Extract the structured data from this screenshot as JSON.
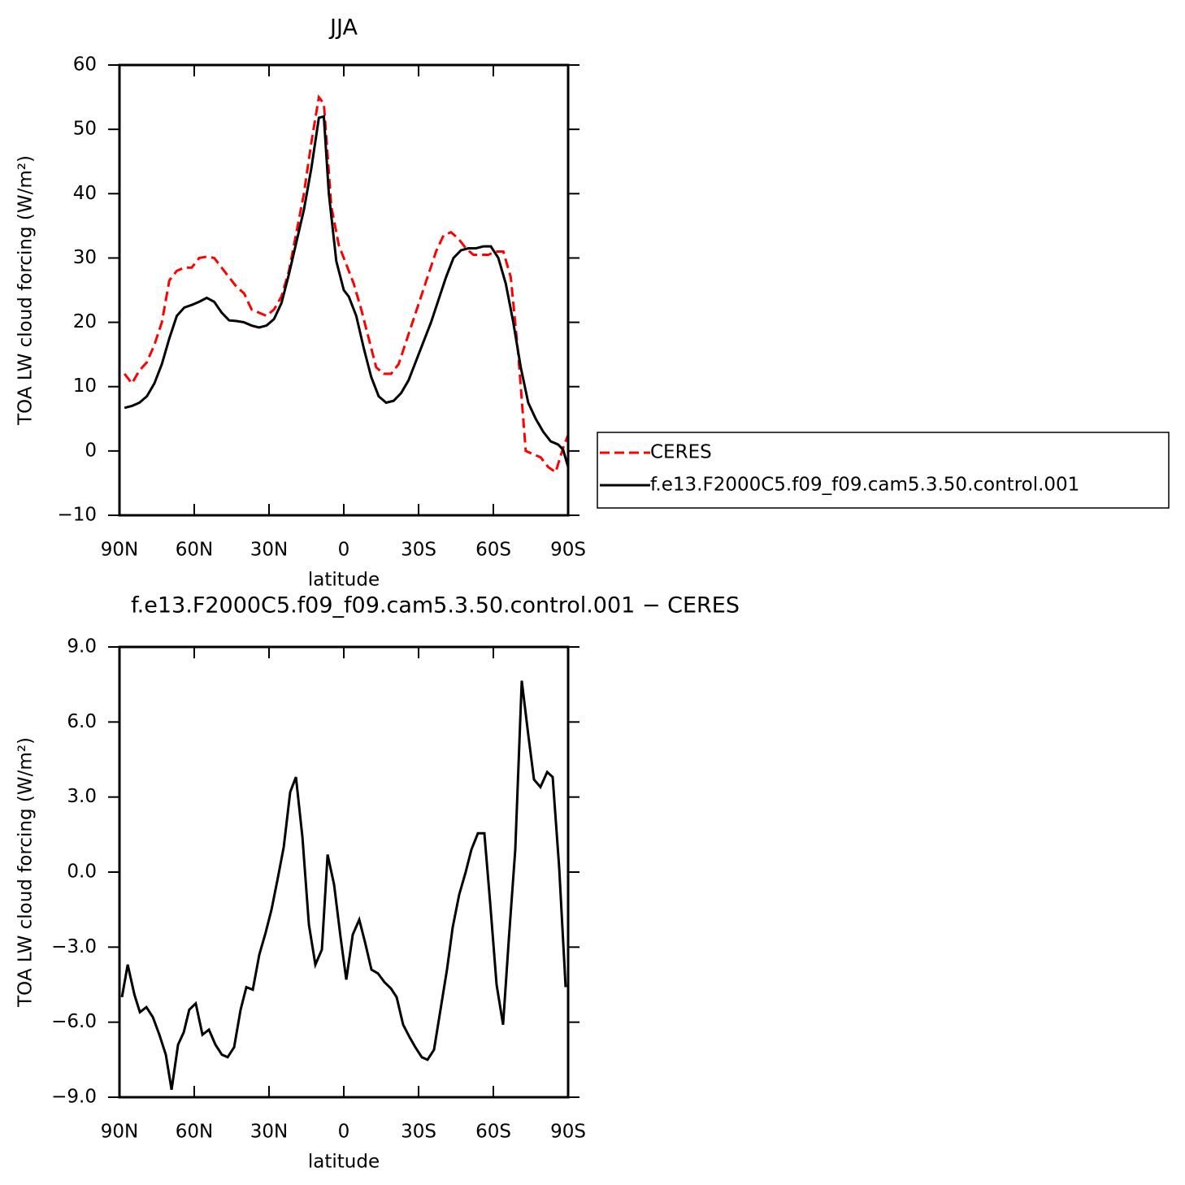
{
  "chart_data": [
    {
      "type": "line",
      "title": "JJA",
      "xlabel": "latitude",
      "ylabel": "TOA LW cloud forcing (W/m²)",
      "xlim": [
        90,
        -90
      ],
      "xticks": [
        {
          "value": 90,
          "label": "90N"
        },
        {
          "value": 60,
          "label": "60N"
        },
        {
          "value": 30,
          "label": "30N"
        },
        0,
        {
          "value": -30,
          "label": "30S"
        },
        {
          "value": -60,
          "label": "60S"
        },
        {
          "value": -90,
          "label": "90S"
        }
      ],
      "ylim": [
        -10,
        60
      ],
      "yticks": [
        {
          "value": -10,
          "label": "−10"
        },
        0,
        10,
        20,
        30,
        40,
        50,
        60
      ],
      "legend": "right",
      "series": [
        {
          "name": "CERES",
          "color": "#ff0000",
          "line_style": "dashed",
          "x": [
            88,
            85,
            82,
            79,
            76,
            73,
            70,
            67,
            64,
            61,
            58,
            55,
            52,
            49,
            46,
            43,
            40,
            37,
            34,
            31,
            28,
            25,
            22,
            19,
            16,
            13,
            10,
            8,
            5,
            2,
            -1,
            -4,
            -7,
            -10,
            -13,
            -16,
            -19,
            -22,
            -25,
            -28,
            -31,
            -34,
            -37,
            -40,
            -43,
            -46,
            -49,
            -52,
            -55,
            -58,
            -61,
            -64,
            -67,
            -70,
            -73,
            -76,
            -79,
            -82,
            -85,
            -88,
            -90
          ],
          "values": [
            12,
            10.5,
            12.5,
            13.8,
            16.5,
            20,
            26.5,
            28,
            28.5,
            28.5,
            30,
            30.2,
            30,
            28.5,
            27,
            25.5,
            24.5,
            22,
            21.5,
            21,
            22,
            24,
            28,
            34,
            40,
            48,
            55,
            54,
            38,
            32,
            29,
            26,
            22,
            17.5,
            13,
            12,
            12,
            13.5,
            17,
            20.5,
            24,
            27.5,
            31,
            33.5,
            34,
            33,
            31.5,
            30.5,
            30.5,
            30.5,
            31,
            31,
            27,
            15,
            0,
            -0.5,
            -1,
            -2.5,
            -3.3,
            0.5,
            2.5
          ]
        },
        {
          "name": "f.e13.F2000C5.f09_f09.cam5.3.50.control.001",
          "color": "#000000",
          "line_style": "solid",
          "x": [
            88,
            85,
            82,
            79,
            76,
            73,
            70,
            67,
            64,
            61,
            58,
            55,
            52,
            49,
            46,
            43,
            40,
            37,
            34,
            31,
            28,
            25,
            22,
            19,
            16,
            13,
            10,
            8,
            6,
            3,
            0,
            -2,
            -5,
            -8,
            -11,
            -14,
            -17,
            -20,
            -23,
            -26,
            -29,
            -32,
            -35,
            -38,
            -41,
            -44,
            -47,
            -50,
            -53,
            -56,
            -59,
            -62,
            -65,
            -68,
            -71,
            -74,
            -77,
            -80,
            -83,
            -86,
            -88,
            -90
          ],
          "values": [
            6.7,
            7,
            7.5,
            8.5,
            10.5,
            13.5,
            17.5,
            21,
            22.3,
            22.7,
            23.2,
            23.8,
            23.2,
            21.5,
            20.3,
            20.2,
            20,
            19.5,
            19.2,
            19.5,
            20.5,
            23,
            27.5,
            32.5,
            37.5,
            44,
            51.8,
            52,
            40,
            29.5,
            25,
            24,
            21,
            16,
            11.5,
            8.5,
            7.5,
            7.8,
            9,
            11,
            14,
            17,
            20,
            23.5,
            27,
            30,
            31.2,
            31.5,
            31.5,
            31.8,
            31.8,
            30,
            26,
            20,
            13,
            7.5,
            5,
            3,
            1.5,
            1,
            0.2,
            -2.5
          ]
        }
      ]
    },
    {
      "type": "line",
      "title": "f.e13.F2000C5.f09_f09.cam5.3.50.control.001 − CERES",
      "xlabel": "latitude",
      "ylabel": "TOA LW cloud forcing (W/m²)",
      "xlim": [
        90,
        -90
      ],
      "xticks": [
        {
          "value": 90,
          "label": "90N"
        },
        {
          "value": 60,
          "label": "60N"
        },
        {
          "value": 30,
          "label": "30N"
        },
        0,
        {
          "value": -30,
          "label": "30S"
        },
        {
          "value": -60,
          "label": "60S"
        },
        {
          "value": -90,
          "label": "90S"
        }
      ],
      "ylim": [
        -9,
        9
      ],
      "yticks": [
        {
          "value": -9,
          "label": "−9.0"
        },
        {
          "value": -6,
          "label": "−6.0"
        },
        {
          "value": -3,
          "label": "−3.0"
        },
        {
          "value": 0,
          "label": "0.0"
        },
        {
          "value": 3,
          "label": "3.0"
        },
        {
          "value": 6,
          "label": "6.0"
        },
        {
          "value": 9,
          "label": "9.0"
        }
      ],
      "color": "#000000",
      "x": [
        89,
        86.7,
        84,
        81.8,
        79.2,
        76.6,
        74,
        71.4,
        69.1,
        66.5,
        64.2,
        62,
        59.4,
        56.7,
        54.1,
        51.5,
        48.9,
        46.6,
        44,
        41.4,
        39.1,
        36.5,
        33.9,
        31.3,
        29,
        26.4,
        24.1,
        21.5,
        19.2,
        16.6,
        14,
        11.4,
        8.8,
        6.5,
        3.9,
        1.3,
        -1,
        -3.6,
        -6.2,
        -8.5,
        -11.1,
        -13.7,
        -16.3,
        -18.9,
        -21.2,
        -23.8,
        -26.4,
        -28.7,
        -31.3,
        -33.6,
        -36.2,
        -38.8,
        -41.4,
        -43.7,
        -46.3,
        -48.9,
        -51.2,
        -53.8,
        -56.4,
        -58.7,
        -61.3,
        -63.9,
        -66.2,
        -68.8,
        -71.4,
        -74,
        -76.3,
        -78.9,
        -81.6,
        -83.8,
        -86.4,
        -89
      ],
      "values": [
        -5,
        -3.7,
        -4.9,
        -5.6,
        -5.4,
        -5.8,
        -6.5,
        -7.3,
        -8.7,
        -6.9,
        -6.4,
        -5.5,
        -5.25,
        -6.5,
        -6.3,
        -6.9,
        -7.3,
        -7.4,
        -7,
        -5.5,
        -4.6,
        -4.7,
        -3.3,
        -2.4,
        -1.5,
        -0.2,
        1,
        3.2,
        3.8,
        1.4,
        -2.1,
        -3.7,
        -3.1,
        0.7,
        -0.5,
        -2.6,
        -4.3,
        -2.5,
        -1.9,
        -2.8,
        -3.9,
        -4.05,
        -4.4,
        -4.65,
        -5,
        -6.1,
        -6.6,
        -7,
        -7.4,
        -7.5,
        -7.1,
        -5.5,
        -3.9,
        -2.2,
        -0.9,
        0,
        0.9,
        1.55,
        1.55,
        -1.2,
        -4.5,
        -6.1,
        -2.7,
        0.9,
        7.65,
        5.5,
        3.7,
        3.4,
        4,
        3.8,
        0.2,
        -4.6
      ]
    }
  ]
}
